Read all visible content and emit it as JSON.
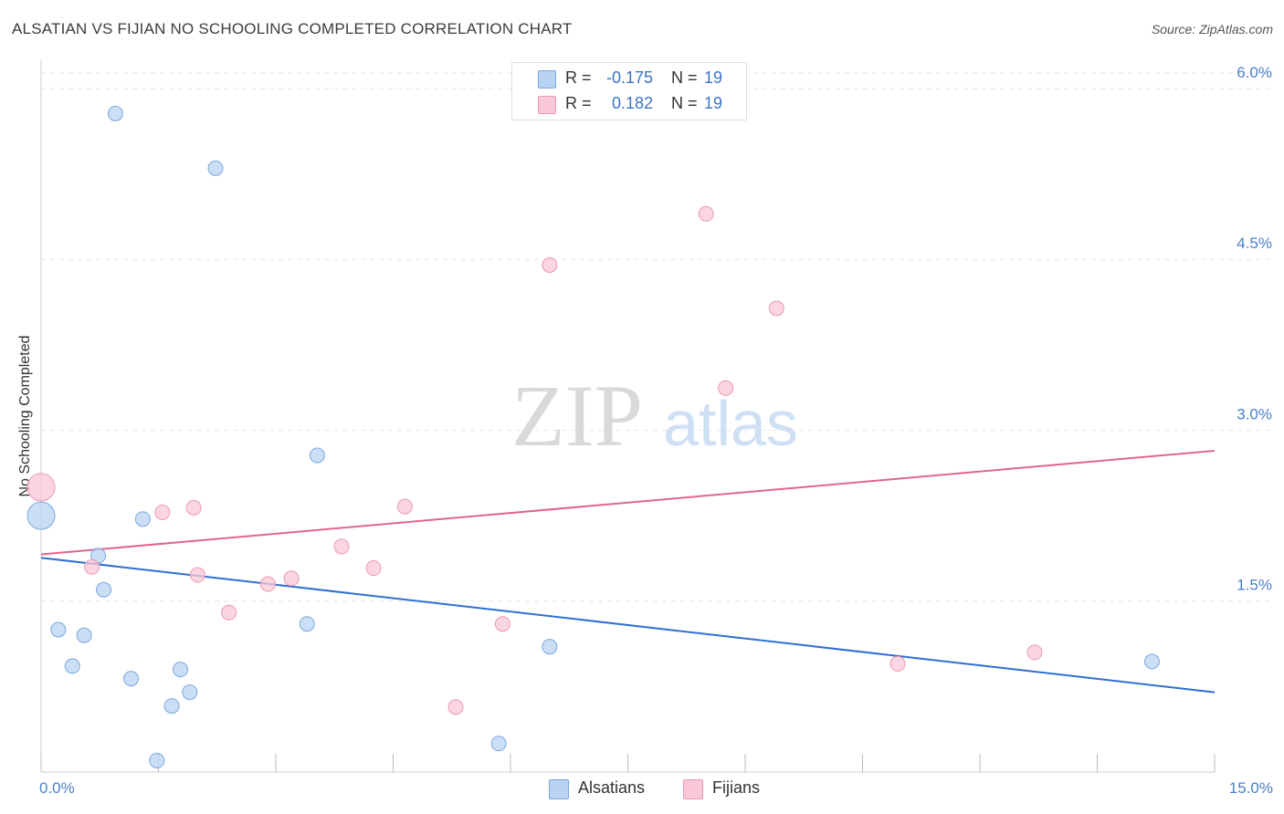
{
  "title": "ALSATIAN VS FIJIAN NO SCHOOLING COMPLETED CORRELATION CHART",
  "source": "Source: ZipAtlas.com",
  "watermark": {
    "zip": "ZIP",
    "atlas": "atlas"
  },
  "colors": {
    "alsatians_fill": "#b8d3f3",
    "alsatians_stroke": "#7aa8de",
    "alsatians_line": "#2f6fd1",
    "fijians_fill": "#f9c7d6",
    "fijians_stroke": "#ec99b3",
    "fijians_line": "#e0658f",
    "tick_label": "#4a7fc9",
    "grid": "#e6e6e6"
  },
  "legend": {
    "rows": [
      {
        "r_label": "R =",
        "r_value": "-0.175",
        "n_label": "N =",
        "n_value": "19"
      },
      {
        "r_label": "R =",
        "r_value": "0.182",
        "n_label": "N =",
        "n_value": "19"
      }
    ]
  },
  "chart_data": {
    "type": "scatter",
    "title": "ALSATIAN VS FIJIAN NO SCHOOLING COMPLETED CORRELATION CHART",
    "xlabel": "",
    "ylabel": "No Schooling Completed",
    "xlim": [
      0.0,
      15.0
    ],
    "ylim": [
      0.0,
      6.2
    ],
    "x_tick_labels": [
      {
        "value": 0.0,
        "label": "0.0%"
      },
      {
        "value": 15.0,
        "label": "15.0%"
      }
    ],
    "y_tick_labels": [
      {
        "value": 1.5,
        "label": "1.5%"
      },
      {
        "value": 3.0,
        "label": "3.0%"
      },
      {
        "value": 4.5,
        "label": "4.5%"
      },
      {
        "value": 6.0,
        "label": "6.0%"
      }
    ],
    "series": [
      {
        "name": "Alsatians",
        "points": [
          {
            "x": 0.0,
            "y": 2.25,
            "size": "large"
          },
          {
            "x": 0.95,
            "y": 5.78
          },
          {
            "x": 2.23,
            "y": 5.3
          },
          {
            "x": 3.53,
            "y": 2.78
          },
          {
            "x": 1.3,
            "y": 2.22
          },
          {
            "x": 0.73,
            "y": 1.9
          },
          {
            "x": 0.8,
            "y": 1.6
          },
          {
            "x": 0.22,
            "y": 1.25
          },
          {
            "x": 0.55,
            "y": 1.2
          },
          {
            "x": 3.4,
            "y": 1.3
          },
          {
            "x": 0.4,
            "y": 0.93
          },
          {
            "x": 1.15,
            "y": 0.82
          },
          {
            "x": 1.78,
            "y": 0.9
          },
          {
            "x": 1.9,
            "y": 0.7
          },
          {
            "x": 1.67,
            "y": 0.58
          },
          {
            "x": 6.5,
            "y": 1.1
          },
          {
            "x": 14.2,
            "y": 0.97
          },
          {
            "x": 5.85,
            "y": 0.25
          },
          {
            "x": 1.48,
            "y": 0.1
          }
        ],
        "trend": {
          "x0": 0.0,
          "y0": 1.88,
          "x1": 15.0,
          "y1": 0.7
        }
      },
      {
        "name": "Fijians",
        "points": [
          {
            "x": 0.0,
            "y": 2.5,
            "size": "large"
          },
          {
            "x": 8.5,
            "y": 4.9
          },
          {
            "x": 6.5,
            "y": 4.45
          },
          {
            "x": 9.4,
            "y": 4.07
          },
          {
            "x": 8.75,
            "y": 3.37
          },
          {
            "x": 1.55,
            "y": 2.28
          },
          {
            "x": 1.95,
            "y": 2.32
          },
          {
            "x": 4.65,
            "y": 2.33
          },
          {
            "x": 3.84,
            "y": 1.98
          },
          {
            "x": 0.65,
            "y": 1.8
          },
          {
            "x": 2.0,
            "y": 1.73
          },
          {
            "x": 4.25,
            "y": 1.79
          },
          {
            "x": 3.2,
            "y": 1.7
          },
          {
            "x": 2.9,
            "y": 1.65
          },
          {
            "x": 2.4,
            "y": 1.4
          },
          {
            "x": 5.9,
            "y": 1.3
          },
          {
            "x": 10.95,
            "y": 0.95
          },
          {
            "x": 12.7,
            "y": 1.05
          },
          {
            "x": 5.3,
            "y": 0.57
          }
        ],
        "trend": {
          "x0": 0.0,
          "y0": 1.91,
          "x1": 15.0,
          "y1": 2.82
        }
      }
    ],
    "grid": true,
    "legend_position": "top-center"
  }
}
